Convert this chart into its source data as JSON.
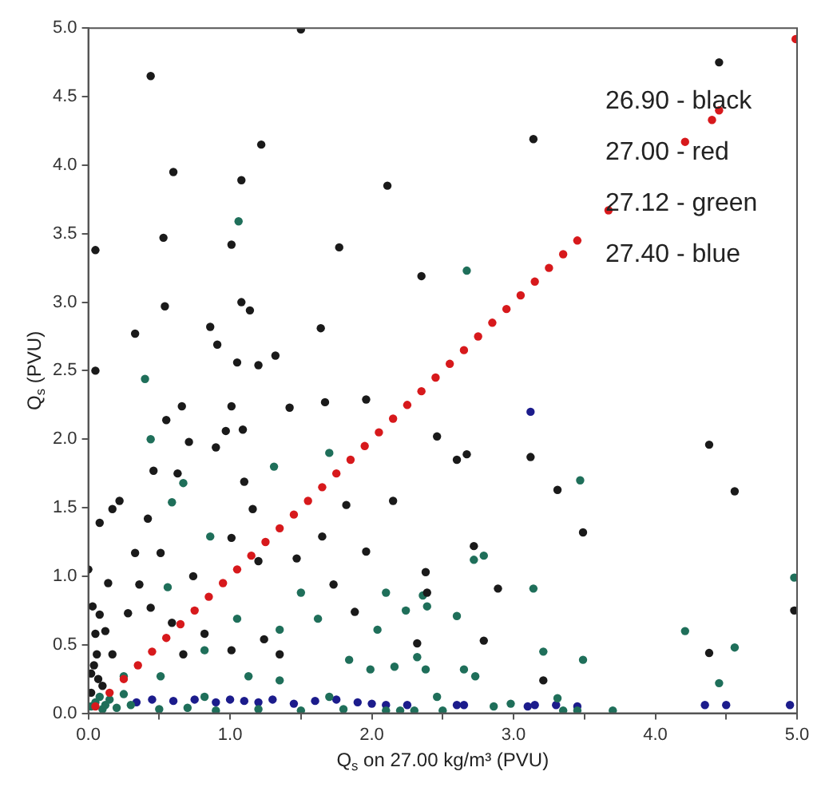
{
  "chart_data": {
    "type": "scatter",
    "xlabel": "Q$_{s}$ on 27.00 kg/m³ (PVU)",
    "ylabel": "Q$_{s}$ (PVU)",
    "annotations": [
      "26.90 - black",
      "27.00 - red",
      "27.12 - green",
      "27.40 - blue"
    ],
    "xlim": [
      0,
      5
    ],
    "ylim": [
      0,
      5
    ],
    "xticks": [
      {
        "value": 0,
        "label": "0.0"
      },
      {
        "value": 0.5,
        "label": null
      },
      {
        "value": 1,
        "label": "1.0"
      },
      {
        "value": 1.5,
        "label": null
      },
      {
        "value": 2,
        "label": "2.0"
      },
      {
        "value": 2.5,
        "label": null
      },
      {
        "value": 3,
        "label": "3.0"
      },
      {
        "value": 3.5,
        "label": null
      },
      {
        "value": 4,
        "label": "4.0"
      },
      {
        "value": 4.5,
        "label": null
      },
      {
        "value": 5,
        "label": "5.0"
      }
    ],
    "yticks": [
      {
        "value": 0,
        "label": "0.0"
      },
      {
        "value": 0.5,
        "label": "0.5"
      },
      {
        "value": 1,
        "label": "1.0"
      },
      {
        "value": 1.5,
        "label": "1.5"
      },
      {
        "value": 2,
        "label": "2.0"
      },
      {
        "value": 2.5,
        "label": "2.5"
      },
      {
        "value": 3,
        "label": "3.0"
      },
      {
        "value": 3.5,
        "label": "3.5"
      },
      {
        "value": 4,
        "label": "4.0"
      },
      {
        "value": 4.5,
        "label": "4.5"
      },
      {
        "value": 5,
        "label": "5.0"
      }
    ],
    "marker": "circle",
    "legend": false,
    "grid": false,
    "series": [
      {
        "color": "#1a1a1a",
        "x": [
          1.5,
          0.44,
          1.22,
          0.6,
          1.08,
          2.11,
          0.05,
          0.53,
          1.01,
          1.77,
          0.54,
          1.08,
          1.14,
          0.33,
          0.86,
          0.91,
          1.64,
          0.05,
          1.05,
          1.2,
          1.32,
          4.45,
          3.14,
          2.35,
          1.42,
          1.67,
          1.96,
          0.66,
          1.01,
          0.55,
          0.97,
          1.09,
          0.71,
          0.46,
          0.63,
          1.1,
          0.9,
          0.08,
          0.22,
          0.17,
          0.42,
          1.16,
          1.82,
          2.15,
          0.33,
          0.51,
          1.47,
          1.96,
          0,
          0.14,
          0.74,
          1.73,
          1.88,
          0.28,
          0.44,
          0.59,
          0.82,
          1.01,
          1.24,
          1.35,
          0.17,
          0.05,
          0.06,
          0.02,
          0.08,
          0.03,
          1.2,
          1.01,
          1.65,
          0.36,
          0.67,
          2.46,
          2.6,
          2.67,
          3.12,
          4.38,
          3.31,
          4.56,
          3.49,
          2.72,
          2.38,
          2.39,
          2.89,
          4.98,
          2.32,
          2.79,
          4.38,
          3.21,
          0.04,
          0.1,
          0.12,
          0.02,
          0.07
        ],
        "values": [
          4.99,
          4.65,
          4.15,
          3.95,
          3.89,
          3.85,
          3.38,
          3.47,
          3.42,
          3.4,
          2.97,
          3.0,
          2.94,
          2.77,
          2.82,
          2.69,
          2.81,
          2.5,
          2.56,
          2.54,
          2.61,
          4.75,
          4.19,
          3.19,
          2.23,
          2.27,
          2.29,
          2.24,
          2.24,
          2.14,
          2.06,
          2.07,
          1.98,
          1.77,
          1.75,
          1.69,
          1.94,
          1.39,
          1.55,
          1.49,
          1.42,
          1.49,
          1.52,
          1.55,
          1.17,
          1.17,
          1.13,
          1.18,
          1.05,
          0.95,
          1.0,
          0.94,
          0.74,
          0.73,
          0.77,
          0.66,
          0.58,
          0.46,
          0.54,
          0.43,
          0.43,
          0.58,
          0.43,
          0.29,
          0.72,
          0.78,
          1.11,
          1.28,
          1.29,
          0.94,
          0.43,
          2.02,
          1.85,
          1.89,
          1.87,
          1.96,
          1.63,
          1.62,
          1.32,
          1.22,
          1.03,
          0.88,
          0.91,
          0.75,
          0.51,
          0.53,
          0.44,
          0.24,
          0.35,
          0.2,
          0.6,
          0.15,
          0.25
        ]
      },
      {
        "color": "#d7191c",
        "x": [
          0.05,
          0.15,
          0.25,
          0.35,
          0.45,
          0.55,
          0.65,
          0.75,
          0.85,
          0.95,
          1.05,
          1.15,
          1.25,
          1.35,
          1.45,
          1.55,
          1.65,
          1.75,
          1.85,
          1.95,
          2.05,
          2.15,
          2.25,
          2.35,
          2.45,
          2.55,
          2.65,
          2.75,
          2.85,
          2.95,
          3.05,
          3.15,
          3.25,
          3.35,
          3.45,
          3.67,
          4.21,
          4.4,
          4.45,
          4.99
        ],
        "values": [
          0.05,
          0.15,
          0.25,
          0.35,
          0.45,
          0.55,
          0.65,
          0.75,
          0.85,
          0.95,
          1.05,
          1.15,
          1.25,
          1.35,
          1.45,
          1.55,
          1.65,
          1.75,
          1.85,
          1.95,
          2.05,
          2.15,
          2.25,
          2.35,
          2.45,
          2.55,
          2.65,
          2.75,
          2.85,
          2.95,
          3.05,
          3.15,
          3.25,
          3.35,
          3.45,
          3.67,
          4.17,
          4.33,
          4.4,
          4.92
        ]
      },
      {
        "color": "#1f6f5a",
        "x": [
          1.06,
          0.4,
          2.67,
          0.44,
          1.31,
          1.7,
          0.67,
          0.59,
          0.86,
          0.56,
          1.5,
          1.62,
          1.05,
          0.82,
          1.35,
          1.13,
          1.35,
          0.51,
          0.25,
          2.04,
          1.84,
          1.99,
          2.1,
          0.25,
          1.7,
          0.82,
          3.47,
          2.72,
          2.79,
          2.36,
          2.39,
          2.24,
          2.6,
          3.14,
          4.98,
          4.21,
          4.56,
          2.32,
          2.38,
          2.16,
          2.65,
          2.73,
          3.21,
          3.49,
          4.45,
          2.46,
          3.31,
          2.98,
          2.86,
          2.1,
          2.2,
          2.3,
          2.5,
          3.35,
          3.45,
          3.7,
          0.02,
          0.05,
          0.1,
          0.15,
          0.2,
          0.3,
          0.5,
          0.7,
          0.9,
          1.2,
          1.5,
          1.8,
          0.08,
          0.12
        ],
        "values": [
          3.59,
          2.44,
          3.23,
          2.0,
          1.8,
          1.9,
          1.68,
          1.54,
          1.29,
          0.92,
          0.88,
          0.69,
          0.69,
          0.46,
          0.61,
          0.27,
          0.24,
          0.27,
          0.27,
          0.61,
          0.39,
          0.32,
          0.88,
          0.14,
          0.12,
          0.12,
          1.7,
          1.12,
          1.15,
          0.86,
          0.78,
          0.75,
          0.71,
          0.91,
          0.99,
          0.6,
          0.48,
          0.41,
          0.32,
          0.34,
          0.32,
          0.27,
          0.45,
          0.39,
          0.22,
          0.12,
          0.11,
          0.07,
          0.05,
          0.02,
          0.02,
          0.02,
          0.02,
          0.02,
          0.02,
          0.02,
          0.05,
          0.08,
          0.03,
          0.1,
          0.04,
          0.06,
          0.03,
          0.04,
          0.02,
          0.03,
          0.02,
          0.03,
          0.12,
          0.06
        ]
      },
      {
        "color": "#1c1c8c",
        "x": [
          3.12,
          0.34,
          0.45,
          0.6,
          0.75,
          0.9,
          1.0,
          1.1,
          1.2,
          1.3,
          1.45,
          1.6,
          1.75,
          1.9,
          2.0,
          2.1,
          2.25,
          2.6,
          2.65,
          3.1,
          3.15,
          3.3,
          3.45,
          4.35,
          4.5,
          4.95
        ],
        "values": [
          2.2,
          0.08,
          0.1,
          0.09,
          0.1,
          0.08,
          0.1,
          0.09,
          0.08,
          0.1,
          0.07,
          0.09,
          0.1,
          0.08,
          0.07,
          0.06,
          0.06,
          0.06,
          0.06,
          0.05,
          0.06,
          0.06,
          0.05,
          0.06,
          0.06,
          0.06
        ]
      }
    ]
  }
}
